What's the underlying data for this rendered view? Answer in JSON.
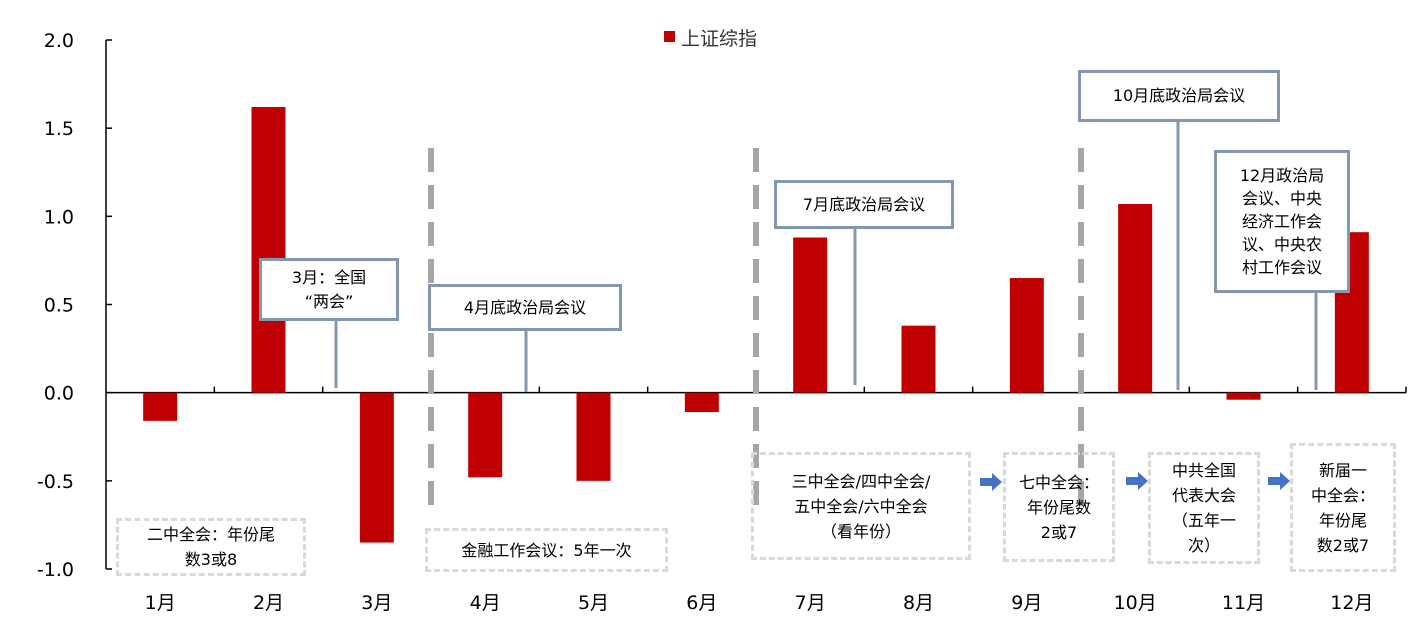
{
  "chart_data": {
    "type": "bar",
    "categories": [
      "1月",
      "2月",
      "3月",
      "4月",
      "5月",
      "6月",
      "7月",
      "8月",
      "9月",
      "10月",
      "11月",
      "12月"
    ],
    "series": [
      {
        "name": "上证综指",
        "values": [
          -0.16,
          1.62,
          -0.85,
          -0.48,
          -0.5,
          -0.11,
          0.88,
          0.38,
          0.65,
          1.07,
          -0.04,
          0.91
        ],
        "color": "#c00000"
      }
    ],
    "ylim": [
      -1.0,
      2.0
    ],
    "yticks": [
      "2.0",
      "1.5",
      "1.0",
      "0.5",
      "0.0",
      "-0.5",
      "-1.0"
    ],
    "grid": false,
    "legend_position": "top-center"
  },
  "annotations": {
    "mar": "3月：全国\n“两会”",
    "apr": "4月底政治局会议",
    "jul": "7月底政治局会议",
    "oct": "10月底政治局会议",
    "dec": "12月政治局\n会议、中央\n经济工作会\n议、中央农\n村工作会议"
  },
  "notes": {
    "n1": "二中全会：年份尾\n数3或8",
    "n2": "金融工作会议：5年一次",
    "n3": "三中全会/四中全会/\n五中全会/六中全会\n（看年份）",
    "n4": "七中全会：\n年份尾数\n2或7",
    "n5": "中共全国\n代表大会\n（五年一\n次）",
    "n6": "新届一\n中全会：\n年份尾\n数2或7"
  },
  "colors": {
    "bar": "#c00000",
    "box_border": "#8497b0",
    "dash_line": "#a6a6a6",
    "note_border": "#d9d9d9",
    "arrow": "#4472c4"
  }
}
